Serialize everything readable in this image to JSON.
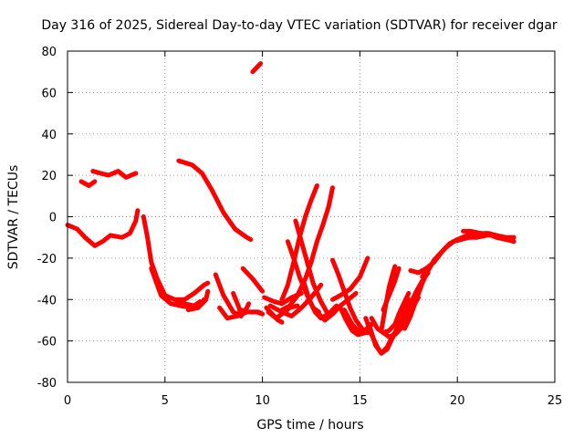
{
  "chart_data": {
    "type": "line",
    "title": "Day 316 of 2025, Sidereal Day-to-day VTEC variation (SDTVAR) for receiver dgar",
    "xlabel": "GPS time / hours",
    "ylabel": "SDTVAR / TECUs",
    "xlim": [
      0,
      25
    ],
    "ylim": [
      -80,
      80
    ],
    "xticks": [
      0,
      5,
      10,
      15,
      20,
      25
    ],
    "yticks": [
      -80,
      -60,
      -40,
      -20,
      0,
      20,
      40,
      60,
      80
    ],
    "grid": true,
    "series_color": "#ff0000",
    "series": [
      {
        "name": "arc-1",
        "points": [
          [
            0.0,
            -4
          ],
          [
            0.5,
            -6
          ],
          [
            0.9,
            -10
          ],
          [
            1.4,
            -14
          ],
          [
            1.8,
            -12
          ],
          [
            2.2,
            -9
          ],
          [
            2.8,
            -10
          ],
          [
            3.2,
            -8
          ],
          [
            3.5,
            -2
          ],
          [
            3.6,
            3
          ]
        ]
      },
      {
        "name": "arc-2",
        "points": [
          [
            0.7,
            17
          ],
          [
            1.1,
            15
          ],
          [
            1.4,
            17
          ]
        ]
      },
      {
        "name": "arc-3",
        "points": [
          [
            1.3,
            22
          ],
          [
            1.7,
            21
          ],
          [
            2.1,
            20
          ],
          [
            2.6,
            22
          ],
          [
            3.0,
            19
          ],
          [
            3.5,
            21
          ]
        ]
      },
      {
        "name": "arc-4",
        "points": [
          [
            3.9,
            0
          ],
          [
            4.1,
            -10
          ],
          [
            4.3,
            -22
          ],
          [
            4.6,
            -30
          ],
          [
            5.0,
            -38
          ],
          [
            5.5,
            -40
          ],
          [
            6.0,
            -40
          ],
          [
            6.5,
            -37
          ],
          [
            7.0,
            -33
          ],
          [
            7.2,
            -32
          ]
        ]
      },
      {
        "name": "arc-5",
        "points": [
          [
            4.3,
            -25
          ],
          [
            4.8,
            -38
          ],
          [
            5.3,
            -42
          ],
          [
            5.8,
            -43
          ],
          [
            6.4,
            -44
          ],
          [
            6.9,
            -42
          ],
          [
            7.0,
            -40
          ]
        ]
      },
      {
        "name": "arc-6",
        "points": [
          [
            5.5,
            -40
          ],
          [
            6.0,
            -42
          ],
          [
            6.5,
            -43
          ],
          [
            6.8,
            -41
          ]
        ]
      },
      {
        "name": "arc-7",
        "points": [
          [
            5.7,
            27
          ],
          [
            6.4,
            25
          ],
          [
            6.9,
            21
          ],
          [
            7.4,
            13
          ],
          [
            8.0,
            2
          ],
          [
            8.6,
            -6
          ],
          [
            9.2,
            -10
          ],
          [
            9.4,
            -11
          ]
        ]
      },
      {
        "name": "arc-8",
        "points": [
          [
            6.2,
            -45
          ],
          [
            6.7,
            -44
          ],
          [
            7.1,
            -40
          ],
          [
            7.2,
            -36
          ]
        ]
      },
      {
        "name": "arc-9",
        "points": [
          [
            7.6,
            -28
          ],
          [
            8.0,
            -38
          ],
          [
            8.5,
            -46
          ],
          [
            8.9,
            -48
          ],
          [
            9.2,
            -44
          ],
          [
            9.3,
            -42
          ]
        ]
      },
      {
        "name": "arc-10",
        "points": [
          [
            7.8,
            -44
          ],
          [
            8.2,
            -49
          ],
          [
            8.7,
            -48
          ],
          [
            9.2,
            -46
          ],
          [
            9.8,
            -46
          ],
          [
            10.0,
            -47
          ]
        ]
      },
      {
        "name": "arc-11",
        "points": [
          [
            8.5,
            -37
          ],
          [
            8.8,
            -44
          ],
          [
            8.9,
            -48
          ]
        ]
      },
      {
        "name": "arc-12",
        "points": [
          [
            8.9,
            -45
          ],
          [
            9.2,
            -46
          ],
          [
            9.7,
            -46
          ],
          [
            10.0,
            -47
          ]
        ]
      },
      {
        "name": "arc-13",
        "points": [
          [
            9.0,
            -25
          ],
          [
            9.5,
            -30
          ],
          [
            10.0,
            -36
          ]
        ]
      },
      {
        "name": "arc-14",
        "points": [
          [
            9.5,
            70
          ],
          [
            9.9,
            74
          ]
        ]
      },
      {
        "name": "arc-15",
        "points": [
          [
            10.1,
            -39
          ],
          [
            10.6,
            -41
          ],
          [
            11.0,
            -42
          ],
          [
            11.5,
            -39
          ],
          [
            12.0,
            -37
          ]
        ]
      },
      {
        "name": "arc-16",
        "points": [
          [
            10.2,
            -44
          ],
          [
            10.5,
            -47
          ],
          [
            10.8,
            -50
          ],
          [
            11.0,
            -51
          ]
        ]
      },
      {
        "name": "arc-17",
        "points": [
          [
            10.3,
            -46
          ],
          [
            10.7,
            -49
          ],
          [
            11.0,
            -47
          ],
          [
            11.4,
            -44
          ],
          [
            11.8,
            -43
          ]
        ]
      },
      {
        "name": "arc-18",
        "points": [
          [
            10.4,
            -43
          ],
          [
            11.0,
            -46
          ],
          [
            11.5,
            -48
          ],
          [
            12.0,
            -44
          ],
          [
            12.5,
            -39
          ],
          [
            13.0,
            -33
          ]
        ]
      },
      {
        "name": "arc-19",
        "points": [
          [
            11.0,
            -45
          ],
          [
            11.4,
            -43
          ],
          [
            11.8,
            -38
          ],
          [
            12.2,
            -30
          ],
          [
            12.5,
            -22
          ],
          [
            12.8,
            -12
          ],
          [
            13.1,
            -4
          ],
          [
            13.4,
            5
          ],
          [
            13.6,
            14
          ]
        ]
      },
      {
        "name": "arc-20",
        "points": [
          [
            11.0,
            -40
          ],
          [
            11.3,
            -33
          ],
          [
            11.6,
            -22
          ],
          [
            11.9,
            -10
          ],
          [
            12.2,
            0
          ],
          [
            12.5,
            8
          ],
          [
            12.8,
            15
          ]
        ]
      },
      {
        "name": "arc-21",
        "points": [
          [
            11.3,
            -12
          ],
          [
            11.6,
            -20
          ],
          [
            11.9,
            -29
          ],
          [
            12.3,
            -38
          ],
          [
            12.6,
            -44
          ],
          [
            12.9,
            -46
          ]
        ]
      },
      {
        "name": "arc-22",
        "points": [
          [
            11.7,
            -2
          ],
          [
            12.0,
            -12
          ],
          [
            12.3,
            -22
          ],
          [
            12.6,
            -32
          ],
          [
            13.0,
            -41
          ],
          [
            13.3,
            -46
          ]
        ]
      },
      {
        "name": "arc-23",
        "points": [
          [
            12.1,
            -31
          ],
          [
            12.4,
            -40
          ],
          [
            12.7,
            -46
          ],
          [
            13.0,
            -49
          ],
          [
            13.4,
            -47
          ],
          [
            13.8,
            -43
          ]
        ]
      },
      {
        "name": "arc-24",
        "points": [
          [
            12.7,
            -45
          ],
          [
            13.2,
            -50
          ],
          [
            13.6,
            -47
          ],
          [
            14.0,
            -43
          ],
          [
            14.4,
            -40
          ],
          [
            14.8,
            -37
          ]
        ]
      },
      {
        "name": "arc-25",
        "points": [
          [
            13.6,
            -40
          ],
          [
            14.0,
            -38
          ],
          [
            14.5,
            -35
          ],
          [
            15.0,
            -29
          ],
          [
            15.4,
            -20
          ]
        ]
      },
      {
        "name": "arc-26",
        "points": [
          [
            13.6,
            -21
          ],
          [
            13.9,
            -28
          ],
          [
            14.2,
            -36
          ],
          [
            14.5,
            -44
          ],
          [
            14.8,
            -50
          ],
          [
            15.1,
            -54
          ],
          [
            15.4,
            -56
          ]
        ]
      },
      {
        "name": "arc-27",
        "points": [
          [
            14.0,
            -44
          ],
          [
            14.3,
            -50
          ],
          [
            14.6,
            -55
          ],
          [
            14.9,
            -57
          ],
          [
            15.3,
            -56
          ],
          [
            15.6,
            -52
          ]
        ]
      },
      {
        "name": "arc-28",
        "points": [
          [
            14.2,
            -45
          ],
          [
            14.6,
            -52
          ],
          [
            15.0,
            -56
          ],
          [
            15.3,
            -55
          ],
          [
            15.5,
            -52
          ]
        ]
      },
      {
        "name": "arc-29",
        "points": [
          [
            15.3,
            -49
          ],
          [
            15.6,
            -57
          ],
          [
            15.9,
            -63
          ],
          [
            16.1,
            -66
          ],
          [
            16.4,
            -64
          ],
          [
            16.7,
            -58
          ],
          [
            17.0,
            -52
          ]
        ]
      },
      {
        "name": "arc-30",
        "points": [
          [
            15.5,
            -53
          ],
          [
            15.8,
            -62
          ],
          [
            16.1,
            -66
          ],
          [
            16.4,
            -63
          ],
          [
            16.7,
            -57
          ]
        ]
      },
      {
        "name": "arc-31",
        "points": [
          [
            15.6,
            -49
          ],
          [
            15.9,
            -54
          ],
          [
            16.2,
            -56
          ],
          [
            16.5,
            -55
          ],
          [
            16.8,
            -52
          ],
          [
            17.2,
            -47
          ],
          [
            17.5,
            -40
          ]
        ]
      },
      {
        "name": "arc-32",
        "points": [
          [
            16.2,
            -45
          ],
          [
            16.5,
            -38
          ],
          [
            16.8,
            -31
          ],
          [
            17.0,
            -25
          ]
        ]
      },
      {
        "name": "arc-33",
        "points": [
          [
            16.2,
            -56
          ],
          [
            16.5,
            -58
          ],
          [
            16.8,
            -57
          ],
          [
            17.1,
            -54
          ],
          [
            17.4,
            -49
          ],
          [
            17.7,
            -44
          ],
          [
            18.0,
            -39
          ]
        ]
      },
      {
        "name": "arc-34",
        "points": [
          [
            16.1,
            -55
          ],
          [
            16.3,
            -44
          ],
          [
            16.5,
            -34
          ],
          [
            16.7,
            -27
          ],
          [
            16.8,
            -24
          ]
        ]
      },
      {
        "name": "arc-35",
        "points": [
          [
            16.8,
            -52
          ],
          [
            17.0,
            -47
          ],
          [
            17.3,
            -41
          ],
          [
            17.5,
            -37
          ]
        ]
      },
      {
        "name": "arc-36",
        "points": [
          [
            17.0,
            -52
          ],
          [
            17.3,
            -48
          ],
          [
            17.6,
            -42
          ],
          [
            17.9,
            -36
          ],
          [
            18.2,
            -31
          ],
          [
            18.5,
            -27
          ]
        ]
      },
      {
        "name": "arc-37",
        "points": [
          [
            17.3,
            -54
          ],
          [
            17.6,
            -48
          ],
          [
            17.9,
            -40
          ],
          [
            18.2,
            -32
          ],
          [
            18.5,
            -26
          ],
          [
            18.8,
            -21
          ],
          [
            19.1,
            -18
          ]
        ]
      },
      {
        "name": "arc-38",
        "points": [
          [
            17.6,
            -26
          ],
          [
            18.0,
            -27
          ],
          [
            18.4,
            -25
          ],
          [
            18.8,
            -22
          ],
          [
            19.2,
            -17
          ],
          [
            19.6,
            -13
          ],
          [
            20.0,
            -11
          ],
          [
            20.5,
            -9
          ],
          [
            20.9,
            -8
          ]
        ]
      },
      {
        "name": "arc-39",
        "points": [
          [
            18.2,
            -29
          ],
          [
            18.6,
            -24
          ],
          [
            19.0,
            -19
          ],
          [
            19.4,
            -15
          ],
          [
            19.8,
            -12
          ],
          [
            20.2,
            -11
          ],
          [
            20.6,
            -10
          ],
          [
            21.0,
            -10
          ],
          [
            21.5,
            -9
          ],
          [
            22.0,
            -9
          ],
          [
            22.5,
            -10
          ],
          [
            22.9,
            -10
          ]
        ]
      },
      {
        "name": "arc-40",
        "points": [
          [
            20.3,
            -7
          ],
          [
            20.7,
            -7
          ],
          [
            21.2,
            -8
          ],
          [
            21.6,
            -8
          ],
          [
            22.0,
            -9
          ],
          [
            22.4,
            -10
          ],
          [
            22.9,
            -10
          ]
        ]
      },
      {
        "name": "arc-41",
        "points": [
          [
            20.0,
            -11
          ],
          [
            20.5,
            -10
          ],
          [
            21.0,
            -9
          ],
          [
            21.5,
            -8
          ],
          [
            22.0,
            -10
          ],
          [
            22.5,
            -11
          ],
          [
            22.9,
            -12
          ]
        ]
      }
    ]
  }
}
